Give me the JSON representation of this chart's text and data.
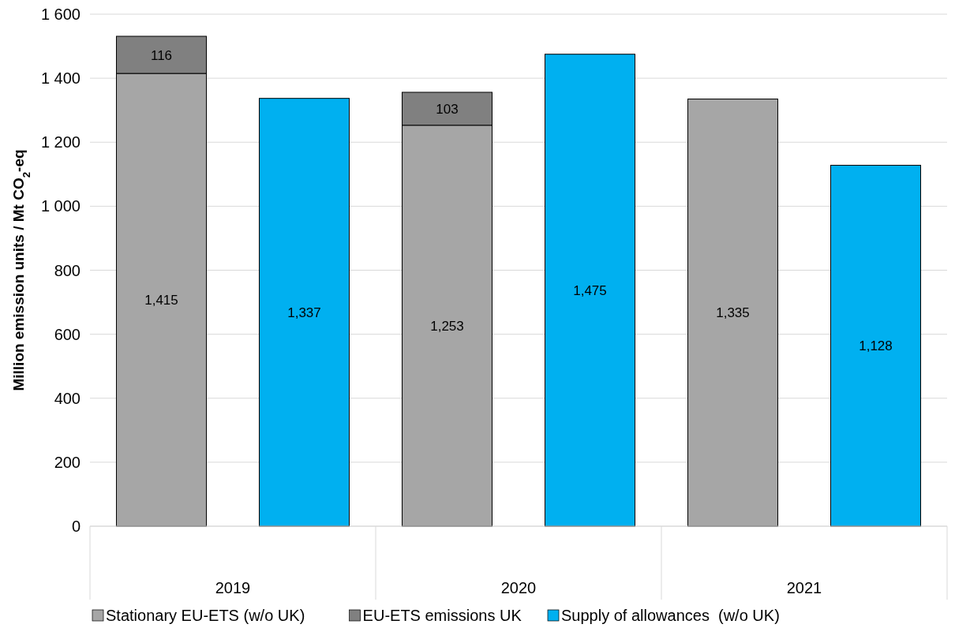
{
  "chart_data": {
    "type": "bar",
    "stacked": true,
    "ylabel": "Million emission units / Mt CO$_{2}$-eq",
    "categories": [
      null,
      null,
      null,
      null,
      null,
      null
    ],
    "series": [
      {
        "name": "Stationary EU-ETS (w/o UK)",
        "color": "#a6a6a6",
        "values": [
          1415,
          null,
          1253,
          null,
          1335,
          null
        ],
        "value_labels": [
          "1,415",
          null,
          "1,253",
          null,
          "1,335",
          null
        ]
      },
      {
        "name": "EU-ETS emissions UK",
        "color": "#808080",
        "values": [
          116,
          null,
          103,
          null,
          null,
          null
        ],
        "value_labels": [
          "116",
          null,
          "103",
          null,
          null,
          null
        ]
      },
      {
        "name": "Supply of allowances  (w/o UK)",
        "color": "#00b0f0",
        "values": [
          null,
          1337,
          null,
          1475,
          null,
          1128
        ],
        "value_labels": [
          null,
          "1,337",
          null,
          "1,475",
          null,
          "1,128"
        ]
      }
    ],
    "annotations": [
      "2019",
      "2020",
      "2021"
    ],
    "ylim": [
      0,
      1600
    ],
    "yticks": [
      0,
      200,
      400,
      600,
      800,
      {
        "value": 1000,
        "label": "1 000"
      },
      {
        "value": 1200,
        "label": "1 200"
      },
      {
        "value": 1400,
        "label": "1 400"
      },
      {
        "value": 1600,
        "label": "1 600"
      }
    ],
    "grid": "y",
    "legend": "bottom"
  }
}
